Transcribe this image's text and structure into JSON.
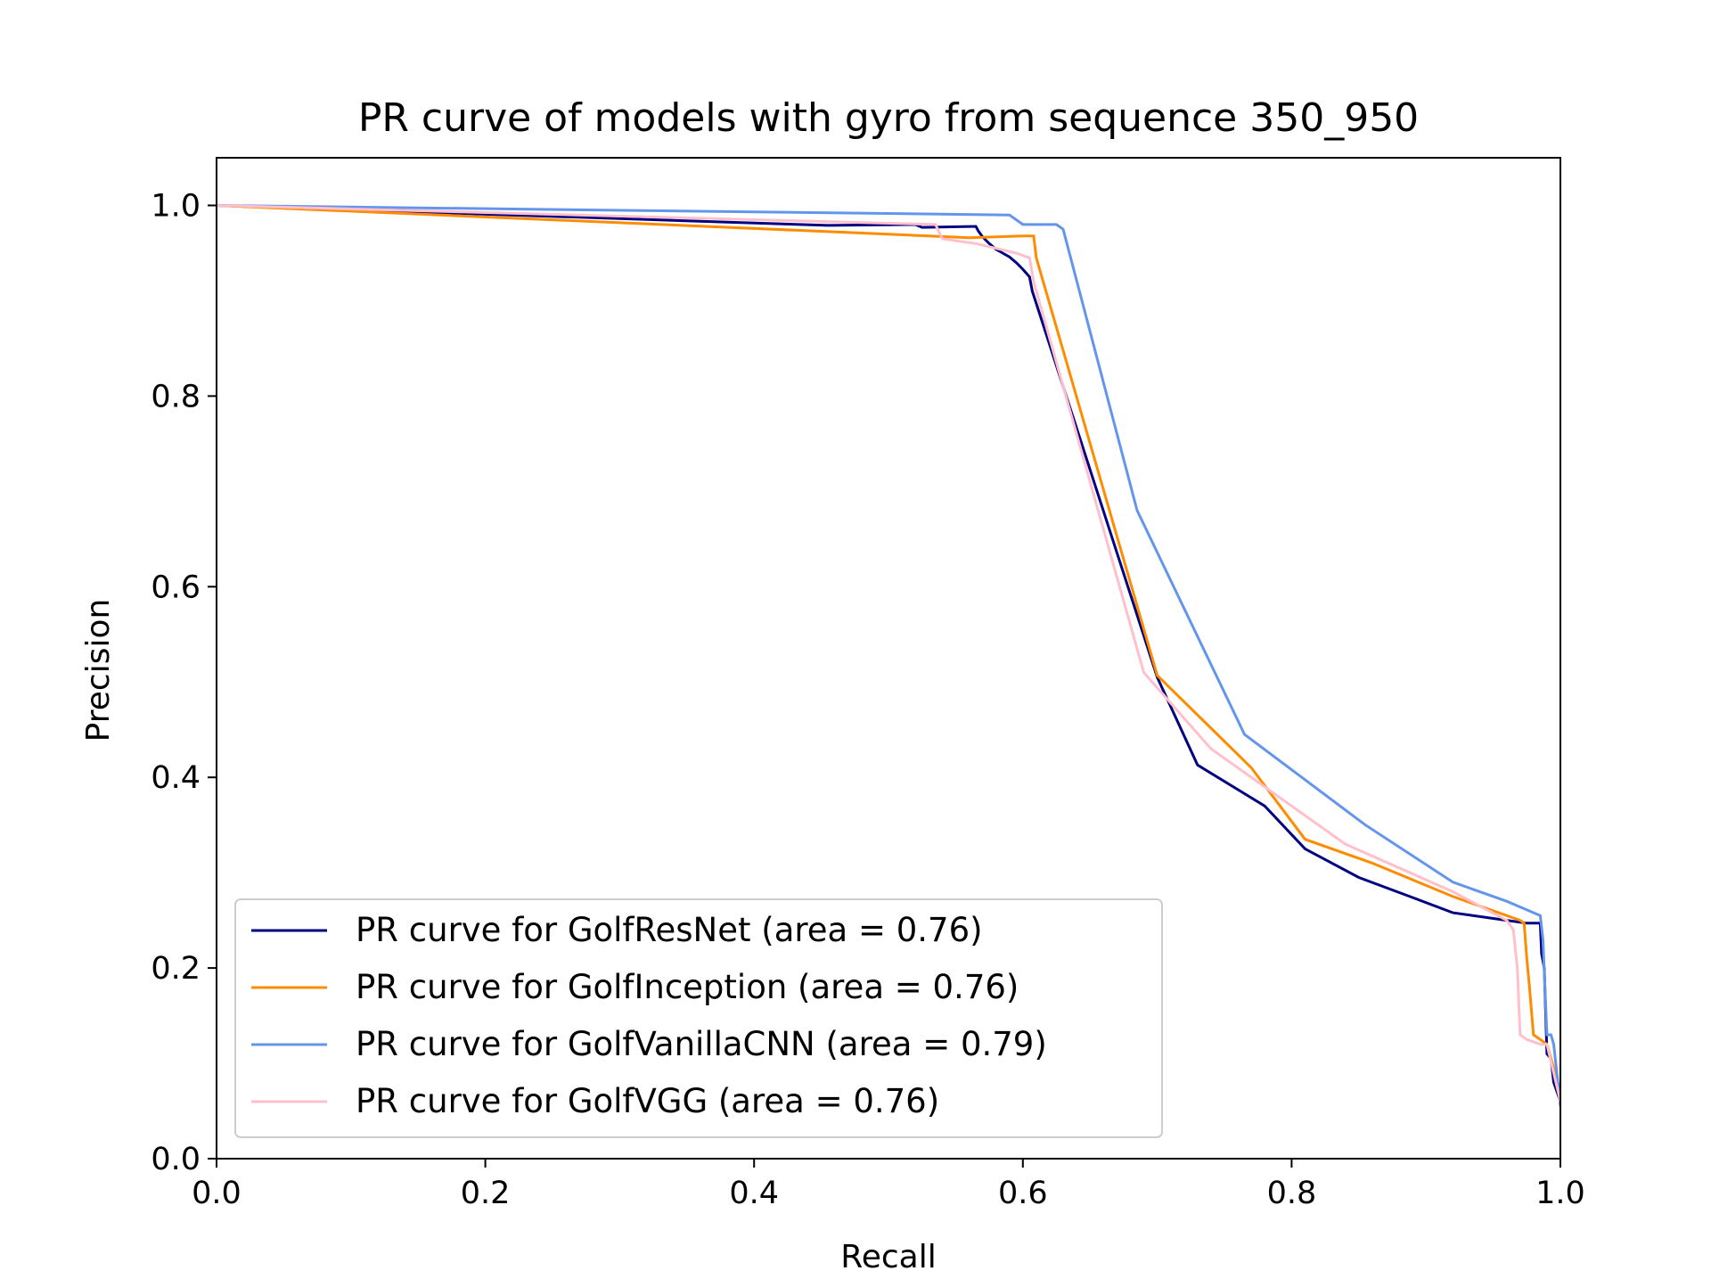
{
  "chart_data": {
    "type": "line",
    "title": "PR curve of models with gyro from sequence 350_950",
    "xlabel": "Recall",
    "ylabel": "Precision",
    "xlim": [
      0.0,
      1.0
    ],
    "ylim": [
      0.0,
      1.05
    ],
    "xticks": [
      0.0,
      0.2,
      0.4,
      0.6,
      0.8,
      1.0
    ],
    "xtick_labels": [
      "0.0",
      "0.2",
      "0.4",
      "0.6",
      "0.8",
      "1.0"
    ],
    "yticks": [
      0.0,
      0.2,
      0.4,
      0.6,
      0.8,
      1.0
    ],
    "ytick_labels": [
      "0.0",
      "0.2",
      "0.4",
      "0.6",
      "0.8",
      "1.0"
    ],
    "grid": false,
    "legend_position": "lower-left",
    "series": [
      {
        "name": "PR curve for GolfResNet (area = 0.76)",
        "color": "#000080",
        "x": [
          0.0,
          0.455,
          0.52,
          0.525,
          0.565,
          0.567,
          0.57,
          0.575,
          0.58,
          0.585,
          0.59,
          0.595,
          0.6,
          0.605,
          0.607,
          0.7,
          0.73,
          0.78,
          0.81,
          0.85,
          0.89,
          0.92,
          0.96,
          0.975,
          0.98,
          0.985,
          0.986,
          0.988,
          0.99,
          0.993,
          0.995,
          1.0
        ],
        "y": [
          1.0,
          0.979,
          0.98,
          0.977,
          0.978,
          0.973,
          0.967,
          0.96,
          0.954,
          0.95,
          0.946,
          0.94,
          0.933,
          0.925,
          0.91,
          0.505,
          0.413,
          0.37,
          0.325,
          0.295,
          0.274,
          0.258,
          0.25,
          0.247,
          0.247,
          0.247,
          0.215,
          0.2,
          0.11,
          0.105,
          0.08,
          0.06
        ]
      },
      {
        "name": "PR curve for GolfInception (area = 0.76)",
        "color": "#ff8c00",
        "x": [
          0.0,
          0.53,
          0.56,
          0.6,
          0.608,
          0.61,
          0.7,
          0.77,
          0.81,
          0.86,
          0.92,
          0.97,
          0.973,
          0.975,
          0.977,
          0.98,
          0.985,
          0.99,
          0.995,
          1.0
        ],
        "y": [
          1.0,
          0.968,
          0.966,
          0.968,
          0.968,
          0.945,
          0.507,
          0.41,
          0.335,
          0.31,
          0.275,
          0.25,
          0.247,
          0.21,
          0.18,
          0.13,
          0.125,
          0.12,
          0.095,
          0.07
        ]
      },
      {
        "name": "PR curve for GolfVanillaCNN (area = 0.79)",
        "color": "#6495ed",
        "x": [
          0.0,
          0.59,
          0.595,
          0.6,
          0.625,
          0.63,
          0.685,
          0.765,
          0.855,
          0.92,
          0.96,
          0.985,
          0.987,
          0.99,
          0.993,
          0.995,
          1.0
        ],
        "y": [
          1.0,
          0.99,
          0.985,
          0.98,
          0.98,
          0.975,
          0.68,
          0.445,
          0.35,
          0.29,
          0.27,
          0.255,
          0.23,
          0.13,
          0.13,
          0.12,
          0.055
        ]
      },
      {
        "name": "PR curve for GolfVGG (area = 0.76)",
        "color": "#ffc0cb",
        "x": [
          0.0,
          0.535,
          0.54,
          0.565,
          0.58,
          0.595,
          0.605,
          0.608,
          0.69,
          0.74,
          0.84,
          0.92,
          0.96,
          0.965,
          0.968,
          0.97,
          0.975,
          0.985,
          0.99,
          1.0
        ],
        "y": [
          1.0,
          0.98,
          0.965,
          0.96,
          0.955,
          0.95,
          0.945,
          0.92,
          0.51,
          0.43,
          0.33,
          0.28,
          0.25,
          0.24,
          0.2,
          0.13,
          0.125,
          0.12,
          0.12,
          0.06
        ]
      }
    ]
  }
}
